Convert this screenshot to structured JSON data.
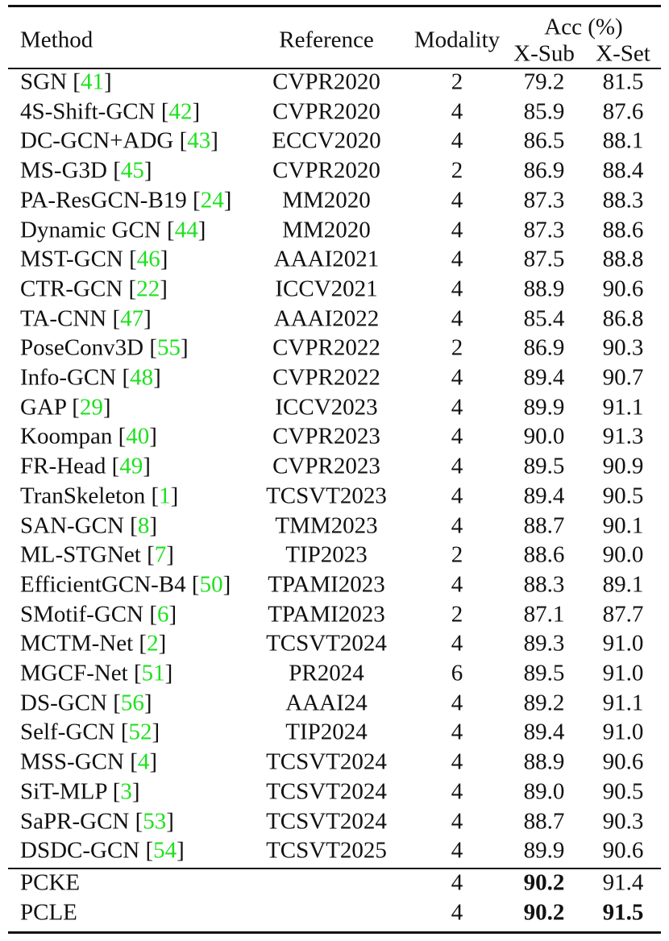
{
  "header": {
    "method": "Method",
    "reference": "Reference",
    "modality": "Modality",
    "acc": "Acc (%)",
    "xsub": "X-Sub",
    "xset": "X-Set"
  },
  "cite_color": "#1ee01e",
  "rows": [
    {
      "method": "SGN",
      "cite": "41",
      "ref": "CVPR2020",
      "mod": "2",
      "xsub": "79.2",
      "xset": "81.5"
    },
    {
      "method": "4S-Shift-GCN",
      "cite": "42",
      "ref": "CVPR2020",
      "mod": "4",
      "xsub": "85.9",
      "xset": "87.6"
    },
    {
      "method": "DC-GCN+ADG",
      "cite": "43",
      "ref": "ECCV2020",
      "mod": "4",
      "xsub": "86.5",
      "xset": "88.1"
    },
    {
      "method": "MS-G3D",
      "cite": "45",
      "ref": "CVPR2020",
      "mod": "2",
      "xsub": "86.9",
      "xset": "88.4"
    },
    {
      "method": "PA-ResGCN-B19",
      "cite": "24",
      "ref": "MM2020",
      "mod": "4",
      "xsub": "87.3",
      "xset": "88.3"
    },
    {
      "method": "Dynamic GCN",
      "cite": "44",
      "ref": "MM2020",
      "mod": "4",
      "xsub": "87.3",
      "xset": "88.6"
    },
    {
      "method": "MST-GCN",
      "cite": "46",
      "ref": "AAAI2021",
      "mod": "4",
      "xsub": "87.5",
      "xset": "88.8"
    },
    {
      "method": "CTR-GCN",
      "cite": "22",
      "ref": "ICCV2021",
      "mod": "4",
      "xsub": "88.9",
      "xset": "90.6"
    },
    {
      "method": "TA-CNN",
      "cite": "47",
      "ref": "AAAI2022",
      "mod": "4",
      "xsub": "85.4",
      "xset": "86.8"
    },
    {
      "method": "PoseConv3D",
      "cite": "55",
      "ref": "CVPR2022",
      "mod": "2",
      "xsub": "86.9",
      "xset": "90.3"
    },
    {
      "method": "Info-GCN",
      "cite": "48",
      "ref": "CVPR2022",
      "mod": "4",
      "xsub": "89.4",
      "xset": "90.7"
    },
    {
      "method": "GAP",
      "cite": "29",
      "ref": "ICCV2023",
      "mod": "4",
      "xsub": "89.9",
      "xset": "91.1"
    },
    {
      "method": "Koompan",
      "cite": "40",
      "ref": "CVPR2023",
      "mod": "4",
      "xsub": "90.0",
      "xset": "91.3"
    },
    {
      "method": "FR-Head",
      "cite": "49",
      "ref": "CVPR2023",
      "mod": "4",
      "xsub": "89.5",
      "xset": "90.9"
    },
    {
      "method": "TranSkeleton",
      "cite": "1",
      "ref": "TCSVT2023",
      "mod": "4",
      "xsub": "89.4",
      "xset": "90.5"
    },
    {
      "method": "SAN-GCN",
      "cite": "8",
      "ref": "TMM2023",
      "mod": "4",
      "xsub": "88.7",
      "xset": "90.1"
    },
    {
      "method": "ML-STGNet",
      "cite": "7",
      "ref": "TIP2023",
      "mod": "2",
      "xsub": "88.6",
      "xset": "90.0"
    },
    {
      "method": "EfficientGCN-B4",
      "cite": "50",
      "ref": "TPAMI2023",
      "mod": "4",
      "xsub": "88.3",
      "xset": "89.1"
    },
    {
      "method": "SMotif-GCN",
      "cite": "6",
      "ref": "TPAMI2023",
      "mod": "2",
      "xsub": "87.1",
      "xset": "87.7"
    },
    {
      "method": "MCTM-Net",
      "cite": "2",
      "ref": "TCSVT2024",
      "mod": "4",
      "xsub": "89.3",
      "xset": "91.0"
    },
    {
      "method": "MGCF-Net",
      "cite": "51",
      "ref": "PR2024",
      "mod": "6",
      "xsub": "89.5",
      "xset": "91.0"
    },
    {
      "method": "DS-GCN",
      "cite": "56",
      "ref": "AAAI24",
      "mod": "4",
      "xsub": "89.2",
      "xset": "91.1"
    },
    {
      "method": "Self-GCN",
      "cite": "52",
      "ref": "TIP2024",
      "mod": "4",
      "xsub": "89.4",
      "xset": "91.0"
    },
    {
      "method": "MSS-GCN",
      "cite": "4",
      "ref": "TCSVT2024",
      "mod": "4",
      "xsub": "88.9",
      "xset": "90.6"
    },
    {
      "method": "SiT-MLP",
      "cite": "3",
      "ref": "TCSVT2024",
      "mod": "4",
      "xsub": "89.0",
      "xset": "90.5"
    },
    {
      "method": "SaPR-GCN",
      "cite": "53",
      "ref": "TCSVT2024",
      "mod": "4",
      "xsub": "88.7",
      "xset": "90.3"
    },
    {
      "method": "DSDC-GCN",
      "cite": "54",
      "ref": "TCSVT2025",
      "mod": "4",
      "xsub": "89.9",
      "xset": "90.6"
    }
  ],
  "ours": [
    {
      "method": "PCKE",
      "ref": "",
      "mod": "4",
      "xsub": "90.2",
      "xset": "91.4",
      "bold_xsub": true,
      "bold_xset": false
    },
    {
      "method": "PCLE",
      "ref": "",
      "mod": "4",
      "xsub": "90.2",
      "xset": "91.5",
      "bold_xsub": true,
      "bold_xset": true
    }
  ]
}
